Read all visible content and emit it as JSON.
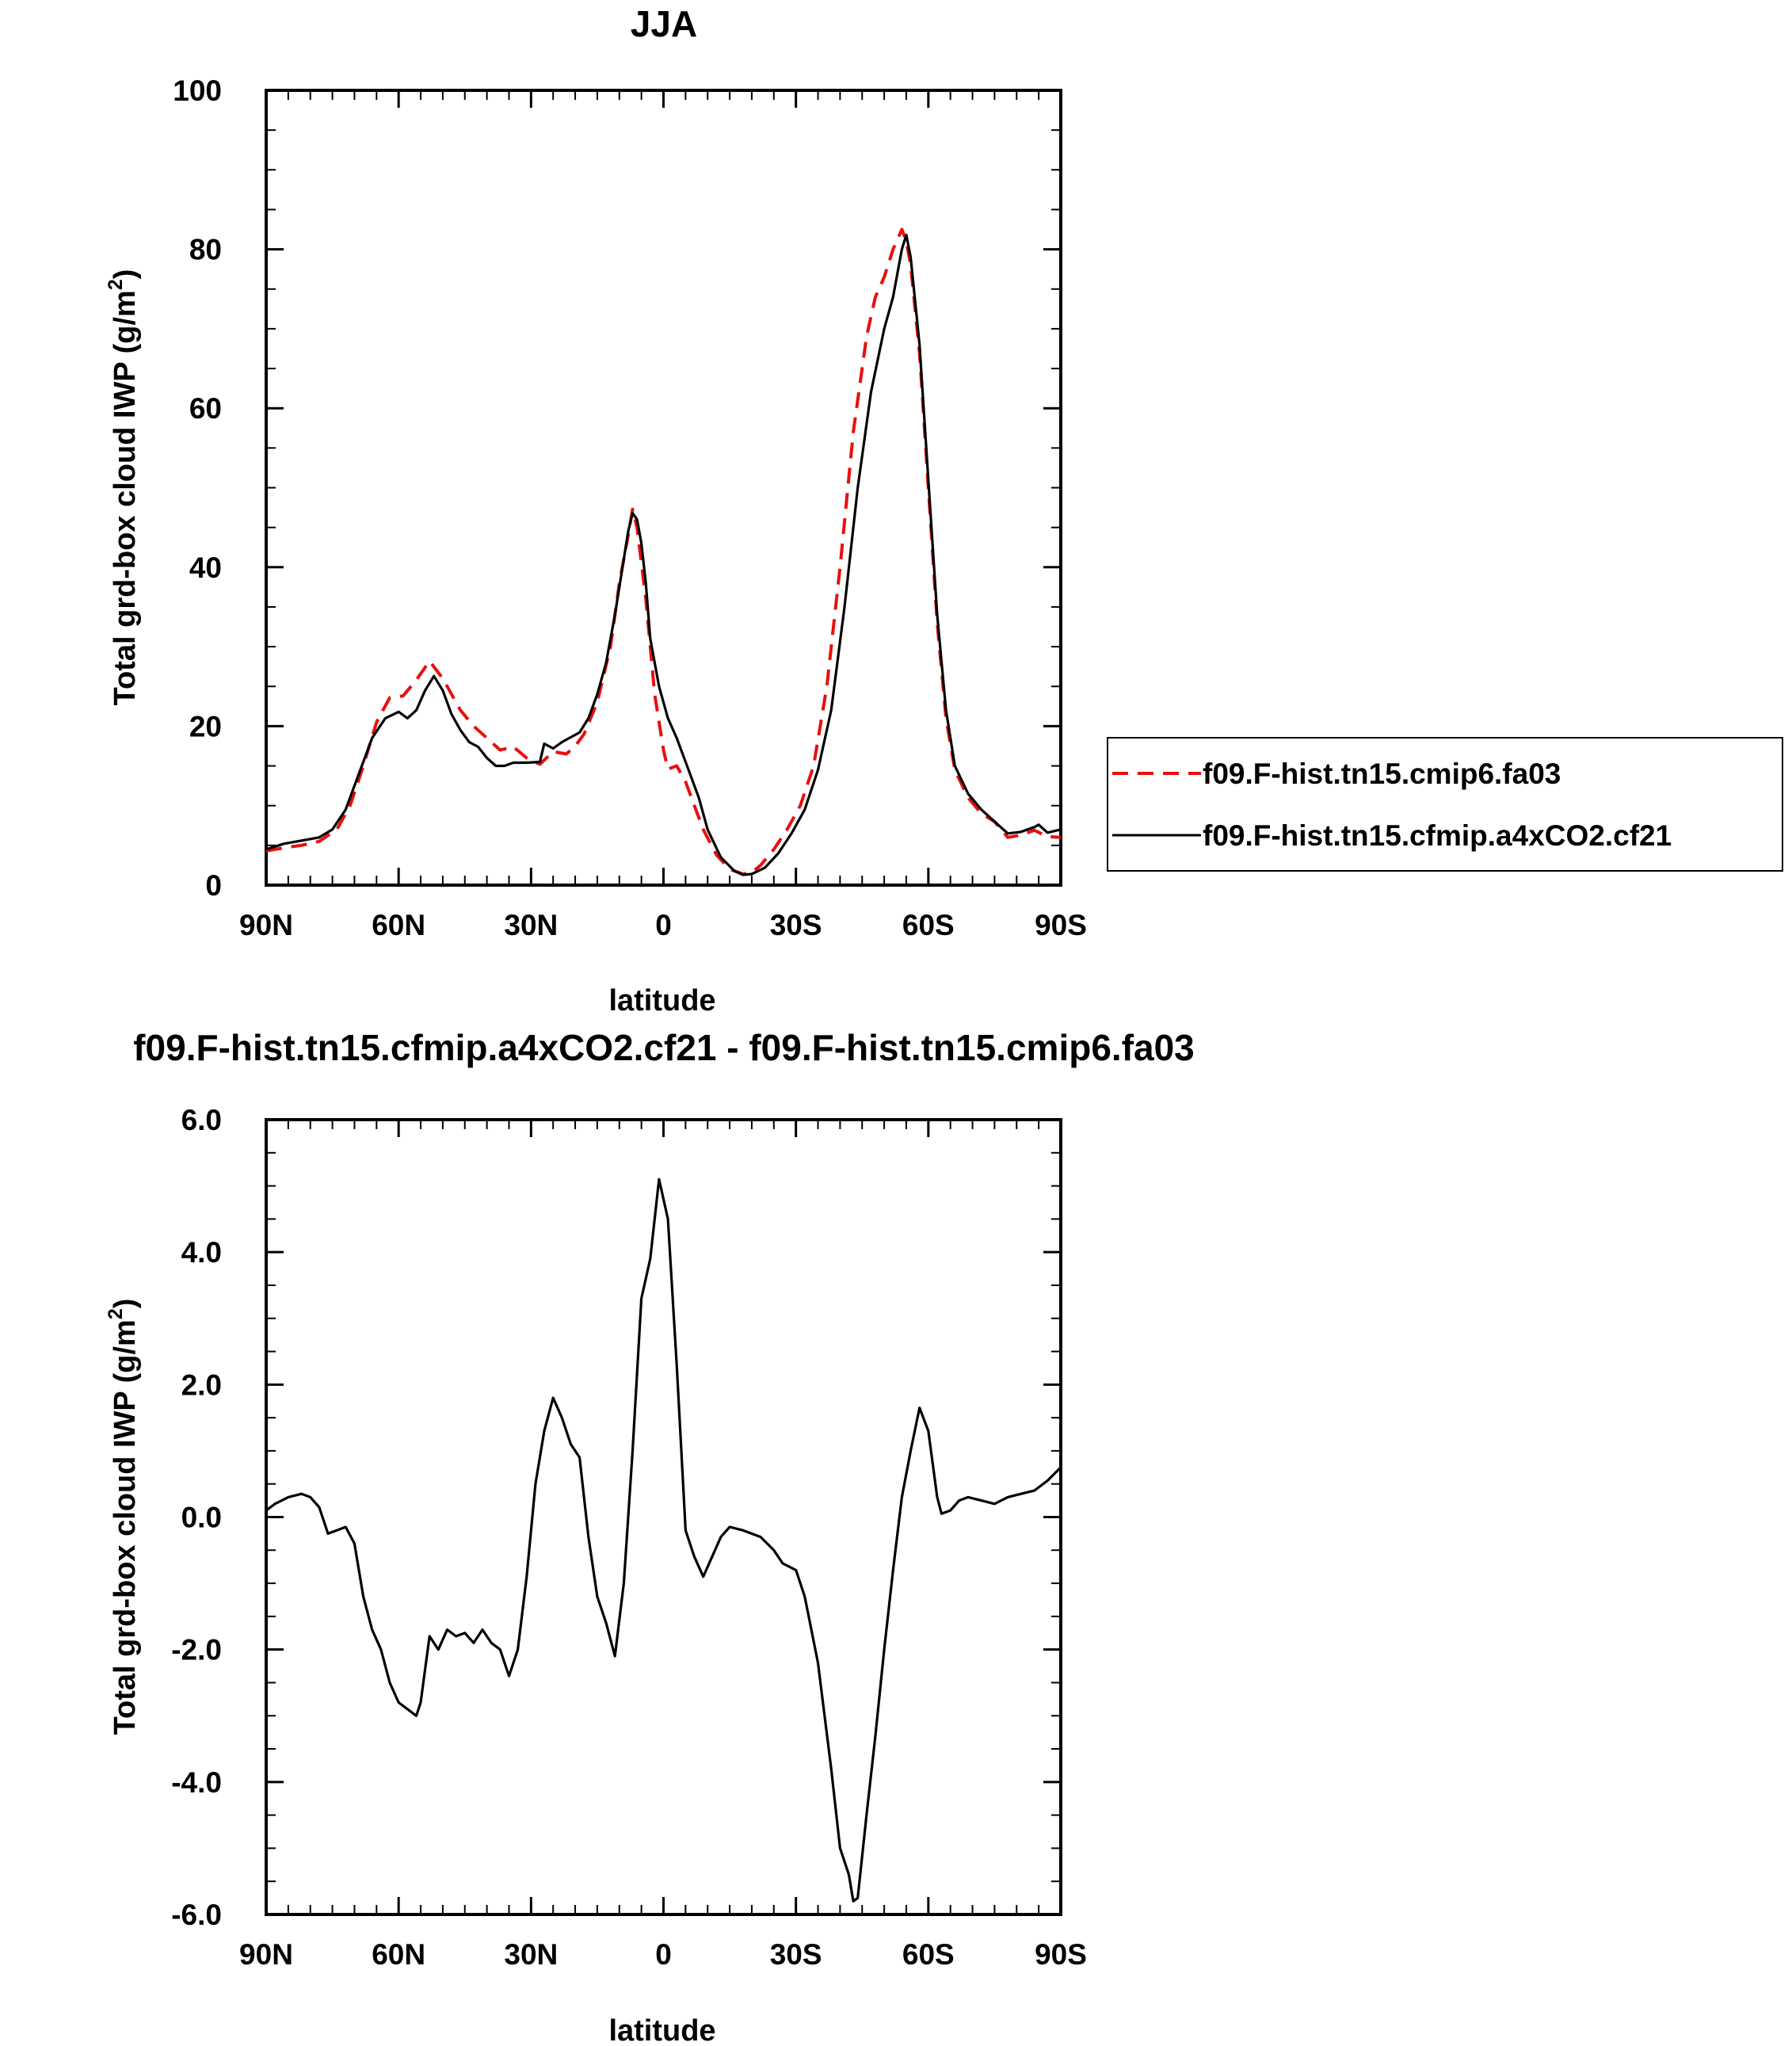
{
  "chart_data": [
    {
      "type": "line",
      "title": "JJA",
      "xlabel": "latitude",
      "ylabel": "Total grd-box cloud IWP (g/m²)",
      "ylabel_parts": {
        "base": "Total grd-box cloud IWP (g/m",
        "sup": "2",
        "end": ")"
      },
      "xlim": [
        90,
        -90
      ],
      "ylim": [
        0,
        100
      ],
      "x_ticks": [
        {
          "value": 90,
          "label": "90N"
        },
        {
          "value": 60,
          "label": "60N"
        },
        {
          "value": 30,
          "label": "30N"
        },
        {
          "value": 0,
          "label": "0"
        },
        {
          "value": -30,
          "label": "30S"
        },
        {
          "value": -60,
          "label": "60S"
        },
        {
          "value": -90,
          "label": "90S"
        }
      ],
      "y_ticks": [
        {
          "value": 0,
          "label": "0"
        },
        {
          "value": 20,
          "label": "20"
        },
        {
          "value": 40,
          "label": "40"
        },
        {
          "value": 60,
          "label": "60"
        },
        {
          "value": 80,
          "label": "80"
        },
        {
          "value": 100,
          "label": "100"
        }
      ],
      "grid": false,
      "legend_placement": "right",
      "series": [
        {
          "name": "f09.F-hist.tn15.cmip6.fa03",
          "color": "#e8100e",
          "style": "dashed",
          "points": [
            [
              90,
              4.3
            ],
            [
              86,
              4.7
            ],
            [
              82,
              5.0
            ],
            [
              78,
              5.5
            ],
            [
              74,
              7.0
            ],
            [
              71,
              10.0
            ],
            [
              68,
              15.0
            ],
            [
              65,
              20.5
            ],
            [
              62,
              23.6
            ],
            [
              59,
              23.8
            ],
            [
              56,
              25.8
            ],
            [
              53,
              28.2
            ],
            [
              50,
              26.0
            ],
            [
              46,
              22.0
            ],
            [
              43,
              20.0
            ],
            [
              40,
              18.5
            ],
            [
              37,
              17.0
            ],
            [
              34,
              17.4
            ],
            [
              31,
              16.0
            ],
            [
              28,
              15.2
            ],
            [
              25,
              16.8
            ],
            [
              22,
              16.5
            ],
            [
              20,
              17.5
            ],
            [
              18,
              19.0
            ],
            [
              15,
              23.0
            ],
            [
              12,
              30.0
            ],
            [
              10,
              38.0
            ],
            [
              8,
              44.0
            ],
            [
              7,
              47.3
            ],
            [
              6,
              45.0
            ],
            [
              4,
              36.0
            ],
            [
              2,
              24.0
            ],
            [
              0,
              17.0
            ],
            [
              -1,
              14.6
            ],
            [
              -3,
              15.0
            ],
            [
              -5,
              13.0
            ],
            [
              -7,
              10.0
            ],
            [
              -9,
              7.0
            ],
            [
              -12,
              3.8
            ],
            [
              -15,
              2.0
            ],
            [
              -18,
              1.4
            ],
            [
              -20,
              1.6
            ],
            [
              -22,
              2.5
            ],
            [
              -25,
              4.5
            ],
            [
              -28,
              7.0
            ],
            [
              -31,
              10.0
            ],
            [
              -34,
              15.0
            ],
            [
              -37,
              25.0
            ],
            [
              -40,
              40.0
            ],
            [
              -43,
              57.0
            ],
            [
              -46,
              69.0
            ],
            [
              -48,
              74.0
            ],
            [
              -50,
              76.5
            ],
            [
              -52,
              80.0
            ],
            [
              -54,
              82.5
            ],
            [
              -55,
              81.0
            ],
            [
              -56,
              78.0
            ],
            [
              -58,
              67.0
            ],
            [
              -60,
              50.0
            ],
            [
              -62,
              33.0
            ],
            [
              -64,
              21.0
            ],
            [
              -66,
              14.5
            ],
            [
              -69,
              11.0
            ],
            [
              -72,
              9.0
            ],
            [
              -75,
              8.0
            ],
            [
              -78,
              6.0
            ],
            [
              -81,
              6.3
            ],
            [
              -84,
              6.9
            ],
            [
              -87,
              6.1
            ],
            [
              -90,
              6.0
            ]
          ]
        },
        {
          "name": "f09.F-hist.tn15.cfmip.a4xCO2.cf21",
          "color": "#000000",
          "style": "solid",
          "points": [
            [
              90,
              4.5
            ],
            [
              86,
              5.2
            ],
            [
              82,
              5.6
            ],
            [
              78,
              6.0
            ],
            [
              75,
              7.0
            ],
            [
              72,
              9.5
            ],
            [
              69,
              14.0
            ],
            [
              66,
              18.5
            ],
            [
              63,
              21.0
            ],
            [
              60,
              21.8
            ],
            [
              58,
              21.0
            ],
            [
              56,
              22.0
            ],
            [
              54,
              24.5
            ],
            [
              52,
              26.3
            ],
            [
              50,
              24.5
            ],
            [
              48,
              21.5
            ],
            [
              46,
              19.5
            ],
            [
              44,
              18.0
            ],
            [
              42,
              17.4
            ],
            [
              40,
              16.0
            ],
            [
              38,
              15.0
            ],
            [
              36,
              15.0
            ],
            [
              34,
              15.4
            ],
            [
              31,
              15.4
            ],
            [
              28,
              15.5
            ],
            [
              27,
              17.8
            ],
            [
              25,
              17.2
            ],
            [
              23,
              18.0
            ],
            [
              21,
              18.6
            ],
            [
              19,
              19.2
            ],
            [
              17,
              21.0
            ],
            [
              15,
              24.0
            ],
            [
              13,
              28.0
            ],
            [
              11,
              34.0
            ],
            [
              9,
              41.0
            ],
            [
              8,
              44.5
            ],
            [
              7,
              46.8
            ],
            [
              6,
              46.0
            ],
            [
              5,
              43.0
            ],
            [
              4,
              38.0
            ],
            [
              3,
              31.0
            ],
            [
              1,
              25.0
            ],
            [
              -1,
              21.0
            ],
            [
              -3,
              18.5
            ],
            [
              -5,
              15.5
            ],
            [
              -8,
              11.0
            ],
            [
              -10,
              7.0
            ],
            [
              -13,
              3.5
            ],
            [
              -16,
              1.8
            ],
            [
              -18,
              1.3
            ],
            [
              -20,
              1.4
            ],
            [
              -23,
              2.2
            ],
            [
              -26,
              4.0
            ],
            [
              -29,
              6.5
            ],
            [
              -32,
              9.5
            ],
            [
              -35,
              14.5
            ],
            [
              -38,
              22.0
            ],
            [
              -41,
              35.0
            ],
            [
              -44,
              50.0
            ],
            [
              -47,
              62.0
            ],
            [
              -50,
              70.0
            ],
            [
              -52,
              74.0
            ],
            [
              -54,
              80.0
            ],
            [
              -55,
              81.8
            ],
            [
              -56,
              79.0
            ],
            [
              -58,
              68.0
            ],
            [
              -60,
              51.0
            ],
            [
              -62,
              34.0
            ],
            [
              -64,
              22.0
            ],
            [
              -66,
              15.0
            ],
            [
              -69,
              11.5
            ],
            [
              -72,
              9.5
            ],
            [
              -75,
              8.0
            ],
            [
              -78,
              6.5
            ],
            [
              -81,
              6.7
            ],
            [
              -84,
              7.3
            ],
            [
              -85,
              7.6
            ],
            [
              -87,
              6.6
            ],
            [
              -90,
              7.0
            ]
          ]
        }
      ]
    },
    {
      "type": "line",
      "title": "f09.F-hist.tn15.cfmip.a4xCO2.cf21 - f09.F-hist.tn15.cmip6.fa03",
      "xlabel": "latitude",
      "ylabel": "Total grd-box cloud IWP (g/m²)",
      "ylabel_parts": {
        "base": "Total grd-box cloud IWP (g/m",
        "sup": "2",
        "end": ")"
      },
      "xlim": [
        90,
        -90
      ],
      "ylim": [
        -6,
        6
      ],
      "x_ticks": [
        {
          "value": 90,
          "label": "90N"
        },
        {
          "value": 60,
          "label": "60N"
        },
        {
          "value": 30,
          "label": "30N"
        },
        {
          "value": 0,
          "label": "0"
        },
        {
          "value": -30,
          "label": "30S"
        },
        {
          "value": -60,
          "label": "60S"
        },
        {
          "value": -90,
          "label": "90S"
        }
      ],
      "y_ticks": [
        {
          "value": -6,
          "label": "-6.0"
        },
        {
          "value": -4,
          "label": "-4.0"
        },
        {
          "value": -2,
          "label": "-2.0"
        },
        {
          "value": 0,
          "label": "0.0"
        },
        {
          "value": 2,
          "label": "2.0"
        },
        {
          "value": 4,
          "label": "4.0"
        },
        {
          "value": 6,
          "label": "6.0"
        }
      ],
      "grid": false,
      "series": [
        {
          "color": "#000000",
          "style": "solid",
          "points": [
            [
              90,
              0.1
            ],
            [
              88,
              0.2
            ],
            [
              85,
              0.3
            ],
            [
              82,
              0.35
            ],
            [
              80,
              0.3
            ],
            [
              78,
              0.15
            ],
            [
              76,
              -0.25
            ],
            [
              74,
              -0.2
            ],
            [
              72,
              -0.15
            ],
            [
              70,
              -0.4
            ],
            [
              68,
              -1.2
            ],
            [
              66,
              -1.7
            ],
            [
              64,
              -2.0
            ],
            [
              62,
              -2.5
            ],
            [
              60,
              -2.8
            ],
            [
              58,
              -2.9
            ],
            [
              56,
              -3.0
            ],
            [
              55,
              -2.8
            ],
            [
              53,
              -1.8
            ],
            [
              51,
              -2.0
            ],
            [
              49,
              -1.7
            ],
            [
              47,
              -1.8
            ],
            [
              45,
              -1.75
            ],
            [
              43,
              -1.9
            ],
            [
              41,
              -1.7
            ],
            [
              39,
              -1.9
            ],
            [
              37,
              -2.0
            ],
            [
              35,
              -2.4
            ],
            [
              33,
              -2.0
            ],
            [
              31,
              -0.9
            ],
            [
              29,
              0.5
            ],
            [
              27,
              1.3
            ],
            [
              25,
              1.8
            ],
            [
              23,
              1.5
            ],
            [
              21,
              1.1
            ],
            [
              19,
              0.9
            ],
            [
              17,
              -0.3
            ],
            [
              15,
              -1.2
            ],
            [
              13,
              -1.6
            ],
            [
              11,
              -2.1
            ],
            [
              9,
              -1.0
            ],
            [
              7,
              1.0
            ],
            [
              5,
              3.3
            ],
            [
              3,
              3.9
            ],
            [
              1,
              5.1
            ],
            [
              -1,
              4.5
            ],
            [
              -3,
              2.3
            ],
            [
              -5,
              -0.2
            ],
            [
              -7,
              -0.6
            ],
            [
              -9,
              -0.9
            ],
            [
              -11,
              -0.6
            ],
            [
              -13,
              -0.3
            ],
            [
              -15,
              -0.15
            ],
            [
              -18,
              -0.2
            ],
            [
              -22,
              -0.3
            ],
            [
              -25,
              -0.5
            ],
            [
              -27,
              -0.7
            ],
            [
              -30,
              -0.8
            ],
            [
              -32,
              -1.2
            ],
            [
              -35,
              -2.2
            ],
            [
              -38,
              -3.8
            ],
            [
              -40,
              -5.0
            ],
            [
              -42,
              -5.4
            ],
            [
              -43,
              -5.8
            ],
            [
              -44,
              -5.75
            ],
            [
              -46,
              -4.5
            ],
            [
              -48,
              -3.3
            ],
            [
              -50,
              -2.0
            ],
            [
              -52,
              -0.8
            ],
            [
              -54,
              0.3
            ],
            [
              -56,
              1.0
            ],
            [
              -58,
              1.65
            ],
            [
              -60,
              1.3
            ],
            [
              -62,
              0.3
            ],
            [
              -63,
              0.05
            ],
            [
              -65,
              0.1
            ],
            [
              -67,
              0.25
            ],
            [
              -69,
              0.3
            ],
            [
              -72,
              0.25
            ],
            [
              -75,
              0.2
            ],
            [
              -78,
              0.3
            ],
            [
              -81,
              0.35
            ],
            [
              -84,
              0.4
            ],
            [
              -87,
              0.55
            ],
            [
              -90,
              0.75
            ]
          ]
        }
      ]
    }
  ]
}
